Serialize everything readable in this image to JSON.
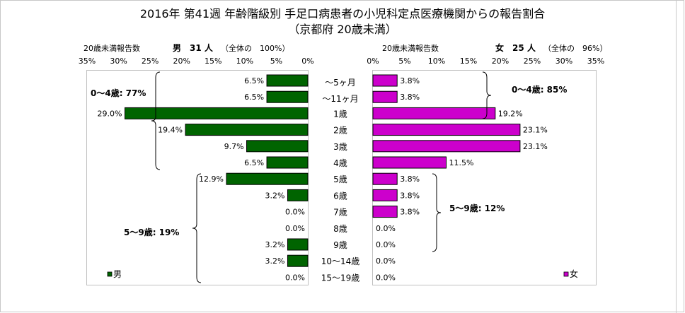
{
  "title_line1": "2016年 第41週 年齢階級別 手足口病患者の小児科定点医療機関からの報告割合",
  "title_line2": "（京都府 20歳未満）",
  "chart_data": {
    "type": "bar",
    "categories": [
      "～5ヶ月",
      "～11ヶ月",
      "1歳",
      "2歳",
      "3歳",
      "4歳",
      "5歳",
      "6歳",
      "7歳",
      "8歳",
      "9歳",
      "10～14歳",
      "15～19歳"
    ],
    "axis_ticks": [
      "35%",
      "30%",
      "25%",
      "20%",
      "15%",
      "10%",
      "5%",
      "0%"
    ],
    "axis_ticks_right": [
      "0%",
      "5%",
      "10%",
      "15%",
      "20%",
      "25%",
      "30%",
      "35%"
    ],
    "xlim": [
      0,
      35
    ],
    "series": [
      {
        "name": "男",
        "header_label": "20歳未満報告数",
        "header_bold": "男　31 人",
        "header_note": "（全体の　100%）",
        "color": "#006400",
        "values": [
          6.5,
          6.5,
          29.0,
          19.4,
          9.7,
          6.5,
          12.9,
          3.2,
          0.0,
          0.0,
          3.2,
          3.2,
          0.0
        ],
        "value_labels": [
          "6.5%",
          "6.5%",
          "29.0%",
          "19.4%",
          "9.7%",
          "6.5%",
          "12.9%",
          "3.2%",
          "0.0%",
          "0.0%",
          "3.2%",
          "3.2%",
          "0.0%"
        ],
        "annotations": [
          "0～4歳: 77%",
          "5～9歳: 19%"
        ]
      },
      {
        "name": "女",
        "header_label": "20歳未満報告数",
        "header_bold": "女　25 人",
        "header_note": "（全体の　96%）",
        "color": "#cc00cc",
        "values": [
          3.8,
          3.8,
          19.2,
          23.1,
          23.1,
          11.5,
          3.8,
          3.8,
          3.8,
          0.0,
          0.0,
          0.0,
          0.0
        ],
        "value_labels": [
          "3.8%",
          "3.8%",
          "19.2%",
          "23.1%",
          "23.1%",
          "11.5%",
          "3.8%",
          "3.8%",
          "3.8%",
          "0.0%",
          "0.0%",
          "0.0%",
          "0.0%"
        ],
        "annotations": [
          "0～4歳: 85%",
          "5～9歳: 12%"
        ]
      }
    ]
  }
}
